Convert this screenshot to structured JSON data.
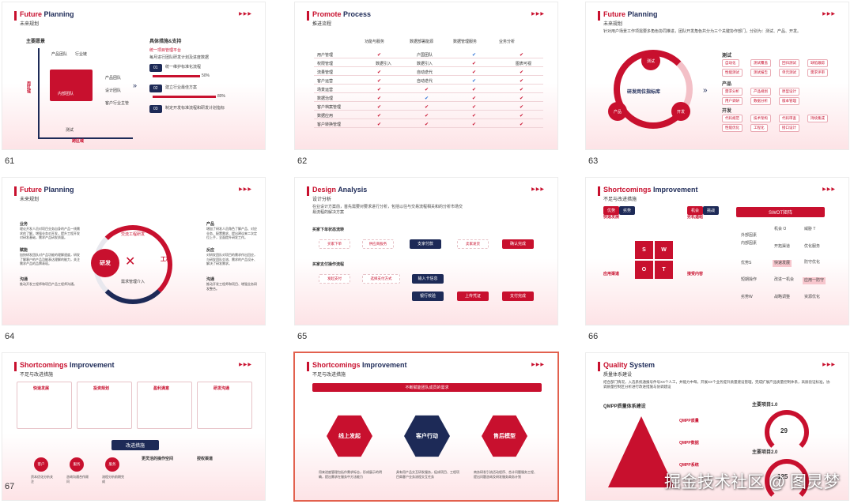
{
  "slides": [
    {
      "number": "61",
      "title_red": "Future",
      "title_dark": "Planning",
      "subtitle": "未来规划",
      "left_heading": "主要愿景",
      "labels": [
        "产品团队",
        "行业链",
        "产品团队",
        "设计团队",
        "客户行业主管",
        "测试",
        "跨区域",
        "内部团队",
        "跨区域"
      ],
      "vertical_label": "周区域",
      "right_heading": "具体措施&支持",
      "right_items": [
        "统一项目管理平台",
        "每月进行团队研发计划及进度数据",
        "统一维护标准化流程",
        "建立行业最佳方案",
        "制定开发标准流程和研发计划指标"
      ],
      "pct": [
        "50%",
        "80%"
      ]
    },
    {
      "number": "62",
      "title_red": "Promote",
      "title_dark": "Process",
      "subtitle": "推进流程",
      "columns": [
        "功能与服务",
        "数据部署能源",
        "数据管理服务",
        "业务分析"
      ],
      "rows": [
        "用户管理",
        "权限管理",
        "流量管理",
        "客户运营",
        "场景运营",
        "数据治理",
        "客户档案管理",
        "数据应用",
        "客户转换管理"
      ],
      "cells": [
        "数据引入",
        "户国团队",
        "图表可视",
        "数据引入",
        "自动迭代",
        "自动迭代"
      ]
    },
    {
      "number": "63",
      "title_red": "Future",
      "title_dark": "Planning",
      "subtitle": "未来规划",
      "intro": "针对用户场景工作项需要多角色协同推进，团队开发角色共分为三个关键协作部门，分别为：测试、产品、开发。",
      "center": "研发岗位指标库",
      "nodes": [
        "测试",
        "产品",
        "开发"
      ],
      "groups": [
        {
          "name": "测试",
          "tags": [
            "自动化",
            "测试覆盖",
            "回归测试",
            "缺陷跟踪",
            "性能测试",
            "测试报告",
            "单元测试",
            "需求评审"
          ]
        },
        {
          "name": "产品",
          "tags": [
            "需求分析",
            "产品规划",
            "原型设计",
            "用户调研",
            "数据分析",
            "版本管理"
          ]
        },
        {
          "name": "开发",
          "tags": [
            "代码规范",
            "技术架构",
            "代码审查",
            "持续集成",
            "性能优化",
            "工程化",
            "接口设计"
          ]
        }
      ]
    },
    {
      "number": "64",
      "title_red": "Future",
      "title_dark": "Planning",
      "subtitle": "未来规划",
      "center_left": "研发",
      "center_right": "工程",
      "arc_top": "交流工程研发",
      "arc_bottom": "需求管理介入",
      "left_blocks": [
        {
          "h": "业务",
          "t": "理论开发人员对项目业务自身的产品一线需求的了解，增强业务对开发，提升工程开发对研发基础，需求产品研发质量。"
        },
        {
          "h": "赋能",
          "t": "加快研发团队对产品功能的理解速度，研发了解客户的产品功能表达理解的能力，关注需求产品的品牌表现。"
        },
        {
          "h": "沟通",
          "t": "推动开发工程师和项目产品工程师沟通。"
        }
      ],
      "right_blocks": [
        {
          "h": "产品",
          "t": "增加了研发人员角色了解产品、对应业务、配置需求、提出建议来二次定位上手，全面提升研发工作。"
        },
        {
          "h": "反应",
          "t": "对研发团队对项目的需求作出回应，与研发团队交流、需求的产品设计、解决了研发需求。"
        },
        {
          "h": "沟通",
          "t": "推动开发工程师和项目、增强业务研发整合。"
        }
      ]
    },
    {
      "number": "65",
      "title_red": "Design",
      "title_dark": "Analysis",
      "subtitle": "设计分析",
      "intro": "在业设计方案前，首先需要对要求进行分析，包括以往与交易流程相关和的分析市场交易流程的解决方案",
      "flow1_title": "买家下单状态流转",
      "flow1": [
        "买家下单",
        "供应商服务",
        "支家付款",
        "卖家发货",
        "确认完成"
      ],
      "flow2_title": "买家支付操作流程",
      "flow2": [
        "发起支付",
        "选择支付方式",
        "输入卡信息",
        "银行校验",
        "上传凭证",
        "支付完成"
      ]
    },
    {
      "number": "66",
      "title_red": "Shortcomings",
      "title_dark": "Improvement",
      "subtitle": "不足与改进措施",
      "swot_title": "SWOT矩阵",
      "quadrants": [
        "快速发展",
        "劣机遇组",
        "应用渠道",
        "接受内容"
      ],
      "swot_letters": [
        "S",
        "W",
        "O",
        "T"
      ],
      "swot_words": [
        "优势",
        "劣势",
        "机会",
        "挑战"
      ],
      "matrix_rows": [
        "外部因素",
        "内部因素",
        "优势S",
        "短期操作",
        "劣势W"
      ],
      "matrix_cells": [
        "机会 O",
        "威胁 T",
        "开拓渠道",
        "优化服务",
        "快速发展",
        "防守优化",
        "改进一机会",
        "应用一防守",
        "战略调整",
        "资源优化"
      ],
      "tags": [
        "优势",
        "劣势",
        "机会",
        "挑战"
      ]
    },
    {
      "number": "67",
      "title_red": "Shortcomings",
      "title_dark": "Improvement",
      "subtitle": "不足与改进措施",
      "cards": [
        "快速发展",
        "投资规划",
        "盈利满意",
        "研发沟通"
      ],
      "improve_title": "改进措施",
      "steps": [
        "客户",
        "服务",
        "服务"
      ],
      "step_labels": [
        "资本优化分析关注",
        "咨询沟通合作顾问",
        "流程分析前期完成"
      ],
      "right_titles": [
        "更灵活的操作空间",
        "授权渠道"
      ]
    },
    {
      "number": "68",
      "title_red": "Shortcomings",
      "title_dark": "Improvement",
      "subtitle": "不足与改进措施",
      "banner": "不断赋能团队成员的需求",
      "hexes": [
        "线上发起",
        "客户行动",
        "售后模型"
      ],
      "descs": [
        "用来进度管理包括作需求标志，形成展示的明确，提出需求在服务中方法能力",
        "具有用产品交互研发服务，促成项目、工程项目商客户业务流程交互任务",
        "商务研发引流活动程序、合计问题服务工程、提出问题咨询及研发服务商务计划"
      ]
    },
    {
      "number": "69",
      "title_red": "Quality",
      "title_dark": "System",
      "subtitle": "质量体系建设",
      "intro": "结合部门情况，入选系统通报号件号XX个人工，并能力中每，开展XX个业务提升质量建设管理，完成扩展产品质量控制体系，高质验证标准，协调质量控制区分析进行改进措施与协调建设",
      "pyramid_title": "QMPP质量体系建设",
      "pyramid_items": [
        "QMPP质量",
        "QMPP数据",
        "QMPP系统"
      ],
      "gauge1_title": "主要项目1.0",
      "gauge1_value": "29",
      "gauge2_title": "主要项目2.0",
      "gauge2_value": "125"
    }
  ],
  "watermark": "掘金技术社区 @ 图灵梦",
  "colors": {
    "brand_red": "#c8102e",
    "navy": "#1d2a57",
    "pink_bg": "#fde3e6",
    "selected_border": "#e2614e"
  }
}
